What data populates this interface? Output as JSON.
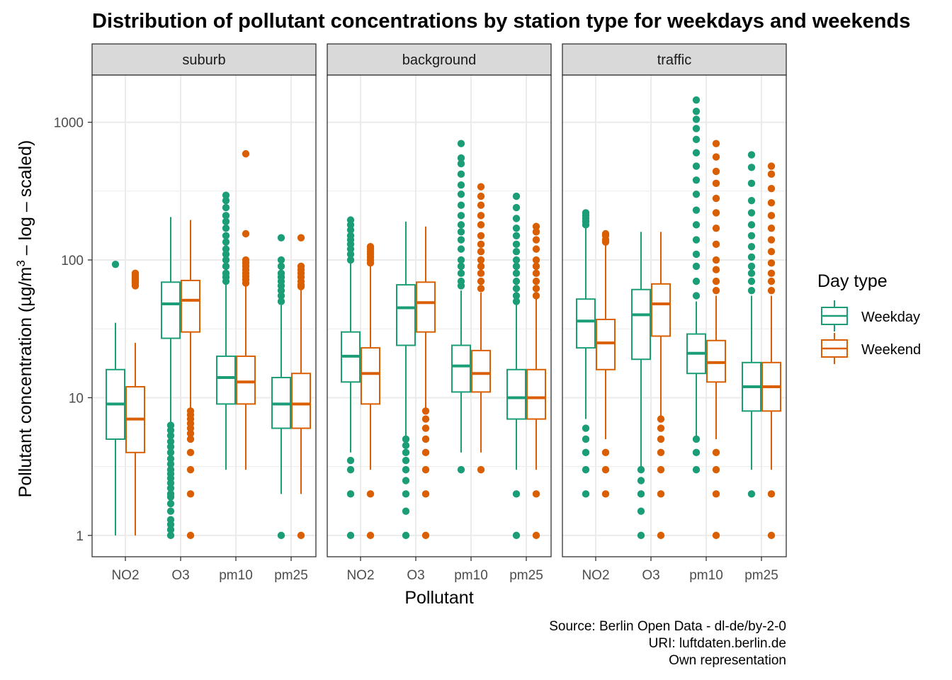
{
  "chart_data": {
    "type": "boxplot",
    "title": "Distribution of pollutant concentrations by station type for weekdays and weekends",
    "xlabel": "Pollutant",
    "ylabel_main": "Pollutant concentration (µg/m",
    "ylabel_sup": "3",
    "ylabel_tail": " – log – scaled)",
    "yscale": "log10",
    "ylim": [
      0.7,
      2200
    ],
    "y_ticks": [
      1,
      10,
      100,
      1000
    ],
    "y_tick_labels": [
      "1",
      "10",
      "100",
      "1000"
    ],
    "categories": [
      "NO2",
      "O3",
      "pm10",
      "pm25"
    ],
    "legend": {
      "title": "Day type",
      "position": "right",
      "items": [
        {
          "label": "Weekday",
          "color": "#1b9e77"
        },
        {
          "label": "Weekend",
          "color": "#d95f02"
        }
      ]
    },
    "caption": [
      "Source: Berlin Open Data - dl-de/by-2-0",
      "URI: luftdaten.berlin.de ",
      "Own representation"
    ],
    "grid": true,
    "facets": [
      {
        "name": "suburb",
        "groups": [
          {
            "pollutant": "NO2",
            "day": "Weekday",
            "min": 1,
            "q1": 5,
            "median": 9,
            "q3": 16,
            "max": 35,
            "outliers": [
              93
            ]
          },
          {
            "pollutant": "NO2",
            "day": "Weekend",
            "min": 1,
            "q1": 4,
            "median": 7,
            "q3": 12,
            "max": 25,
            "outliers": [
              65,
              68,
              70,
              72,
              74,
              76,
              78,
              80
            ]
          },
          {
            "pollutant": "O3",
            "day": "Weekday",
            "min": 3,
            "q1": 27,
            "median": 48,
            "q3": 69,
            "max": 205,
            "outliers": [
              1,
              1.1,
              1.2,
              1.3,
              1.5,
              1.7,
              1.9,
              2,
              2.2,
              2.4,
              2.6,
              2.8,
              3,
              3.3,
              3.6,
              4,
              4.4,
              4.8,
              5.3,
              5.8,
              6.3
            ]
          },
          {
            "pollutant": "O3",
            "day": "Weekend",
            "min": 8,
            "q1": 30,
            "median": 51,
            "q3": 71,
            "max": 195,
            "outliers": [
              1,
              2,
              3,
              4,
              5,
              5.5,
              6,
              6.5,
              7,
              7.5,
              8
            ]
          },
          {
            "pollutant": "pm10",
            "day": "Weekday",
            "min": 3,
            "q1": 9,
            "median": 14,
            "q3": 20,
            "max": 66,
            "outliers": [
              70,
              75,
              80,
              90,
              100,
              110,
              120,
              135,
              150,
              170,
              190,
              210,
              240,
              270,
              295
            ]
          },
          {
            "pollutant": "pm10",
            "day": "Weekend",
            "min": 3,
            "q1": 9,
            "median": 13,
            "q3": 20,
            "max": 65,
            "outliers": [
              68,
              72,
              76,
              80,
              85,
              90,
              95,
              100,
              155,
              590
            ]
          },
          {
            "pollutant": "pm25",
            "day": "Weekday",
            "min": 2,
            "q1": 6,
            "median": 9,
            "q3": 14,
            "max": 47,
            "outliers": [
              1,
              50,
              55,
              60,
              65,
              70,
              75,
              80,
              90,
              100,
              145
            ]
          },
          {
            "pollutant": "pm25",
            "day": "Weekend",
            "min": 2,
            "q1": 6,
            "median": 9,
            "q3": 15,
            "max": 62,
            "outliers": [
              1,
              64,
              66,
              70,
              75,
              80,
              85,
              90,
              145
            ]
          }
        ]
      },
      {
        "name": "background",
        "groups": [
          {
            "pollutant": "NO2",
            "day": "Weekday",
            "min": 4,
            "q1": 13,
            "median": 20,
            "q3": 30,
            "max": 95,
            "outliers": [
              1,
              2,
              3,
              3.5,
              100,
              110,
              120,
              130,
              140,
              150,
              165,
              180,
              195
            ]
          },
          {
            "pollutant": "NO2",
            "day": "Weekend",
            "min": 3,
            "q1": 9,
            "median": 15,
            "q3": 23,
            "max": 92,
            "outliers": [
              1,
              2,
              95,
              100,
              105,
              110,
              115,
              120,
              125
            ]
          },
          {
            "pollutant": "O3",
            "day": "Weekday",
            "min": 5,
            "q1": 24,
            "median": 45,
            "q3": 66,
            "max": 190,
            "outliers": [
              1,
              1.5,
              2,
              2.5,
              3,
              3.5,
              4,
              4.5,
              5
            ]
          },
          {
            "pollutant": "O3",
            "day": "Weekend",
            "min": 8,
            "q1": 30,
            "median": 49,
            "q3": 69,
            "max": 175,
            "outliers": [
              1,
              2,
              3,
              4,
              5,
              6,
              7,
              8
            ]
          },
          {
            "pollutant": "pm10",
            "day": "Weekday",
            "min": 4,
            "q1": 11,
            "median": 17,
            "q3": 24,
            "max": 60,
            "outliers": [
              3,
              65,
              70,
              80,
              90,
              100,
              120,
              140,
              160,
              180,
              210,
              250,
              300,
              350,
              420,
              500,
              550,
              700
            ]
          },
          {
            "pollutant": "pm10",
            "day": "Weekend",
            "min": 4,
            "q1": 11,
            "median": 15,
            "q3": 22,
            "max": 58,
            "outliers": [
              3,
              62,
              70,
              80,
              90,
              100,
              115,
              130,
              150,
              180,
              210,
              250,
              290,
              340
            ]
          },
          {
            "pollutant": "pm25",
            "day": "Weekday",
            "min": 3,
            "q1": 7,
            "median": 10,
            "q3": 16,
            "max": 48,
            "outliers": [
              1,
              2,
              50,
              55,
              62,
              70,
              80,
              90,
              100,
              115,
              130,
              150,
              170,
              200,
              240,
              290
            ]
          },
          {
            "pollutant": "pm25",
            "day": "Weekend",
            "min": 3,
            "q1": 7,
            "median": 10,
            "q3": 16,
            "max": 52,
            "outliers": [
              1,
              2,
              55,
              62,
              70,
              80,
              90,
              100,
              120,
              140,
              160,
              175
            ]
          }
        ]
      },
      {
        "name": "traffic",
        "groups": [
          {
            "pollutant": "NO2",
            "day": "Weekday",
            "min": 7,
            "q1": 23,
            "median": 36,
            "q3": 52,
            "max": 175,
            "outliers": [
              2,
              3,
              4,
              5,
              6,
              180,
              190,
              200,
              210,
              220
            ]
          },
          {
            "pollutant": "NO2",
            "day": "Weekend",
            "min": 5,
            "q1": 16,
            "median": 25,
            "q3": 37,
            "max": 130,
            "outliers": [
              2,
              3,
              4,
              135,
              140,
              150,
              155
            ]
          },
          {
            "pollutant": "O3",
            "day": "Weekday",
            "min": 3,
            "q1": 19,
            "median": 40,
            "q3": 61,
            "max": 160,
            "outliers": [
              1,
              1.5,
              2,
              2.5,
              3
            ]
          },
          {
            "pollutant": "O3",
            "day": "Weekend",
            "min": 7,
            "q1": 28,
            "median": 48,
            "q3": 67,
            "max": 160,
            "outliers": [
              1,
              2,
              3,
              4,
              5,
              6,
              7
            ]
          },
          {
            "pollutant": "pm10",
            "day": "Weekday",
            "min": 5,
            "q1": 15,
            "median": 21,
            "q3": 29,
            "max": 50,
            "outliers": [
              3,
              4,
              5,
              55,
              70,
              90,
              110,
              140,
              180,
              230,
              300,
              380,
              480,
              600,
              750,
              900,
              1050,
              1200,
              1450
            ]
          },
          {
            "pollutant": "pm10",
            "day": "Weekend",
            "min": 5,
            "q1": 13,
            "median": 18,
            "q3": 26,
            "max": 55,
            "outliers": [
              1,
              2,
              3,
              4,
              60,
              70,
              85,
              100,
              130,
              170,
              220,
              280,
              360,
              440,
              560,
              700
            ]
          },
          {
            "pollutant": "pm25",
            "day": "Weekday",
            "min": 3,
            "q1": 8,
            "median": 12,
            "q3": 18,
            "max": 55,
            "outliers": [
              2,
              60,
              70,
              80,
              90,
              105,
              125,
              150,
              180,
              220,
              270,
              360,
              470,
              580
            ]
          },
          {
            "pollutant": "pm25",
            "day": "Weekend",
            "min": 3,
            "q1": 8,
            "median": 12,
            "q3": 18,
            "max": 55,
            "outliers": [
              1,
              2,
              60,
              70,
              80,
              95,
              115,
              140,
              170,
              210,
              260,
              330,
              420,
              480
            ]
          }
        ]
      }
    ]
  }
}
